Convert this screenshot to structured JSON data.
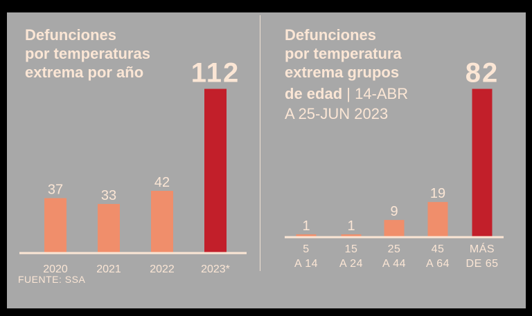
{
  "colors": {
    "background": "#A8A8A8",
    "frame": "#000000",
    "bar_light": "#F08E6B",
    "bar_highlight": "#C21F2A",
    "text": "#FBE6D5",
    "baseline": "#FBE6D5"
  },
  "source": "FUENTE: SSA",
  "chart_data": [
    {
      "type": "bar",
      "title": "Defunciones por temperaturas extrema por año",
      "title_lines": [
        "Defunciones",
        "por temperaturas",
        "extrema por año"
      ],
      "categories": [
        "2020",
        "2021",
        "2022",
        "2023*"
      ],
      "values": [
        37,
        33,
        42,
        112
      ],
      "value_labels": [
        "37",
        "33",
        "42",
        "112"
      ],
      "highlight_index": 3,
      "ylim": [
        0,
        112
      ],
      "grid": false
    },
    {
      "type": "bar",
      "title": "Defunciones por temperatura extrema grupos de edad | 14-ABR A 25-JUN 2023",
      "title_lines": [
        "Defunciones",
        "por temperatura",
        "extrema grupos"
      ],
      "title_line4_bold": "de edad",
      "title_line4_light": " | 14-ABR",
      "title_line5_light": "A 25-JUN 2023",
      "categories": [
        [
          "5",
          "A 14"
        ],
        [
          "15",
          "A 24"
        ],
        [
          "25",
          "A 44"
        ],
        [
          "45",
          "A 64"
        ],
        [
          "MÁS",
          "DE 65"
        ]
      ],
      "values": [
        1,
        1,
        9,
        19,
        82
      ],
      "value_labels": [
        "1",
        "1",
        "9",
        "19",
        "82"
      ],
      "highlight_index": 4,
      "ylim": [
        0,
        82
      ],
      "grid": false
    }
  ]
}
